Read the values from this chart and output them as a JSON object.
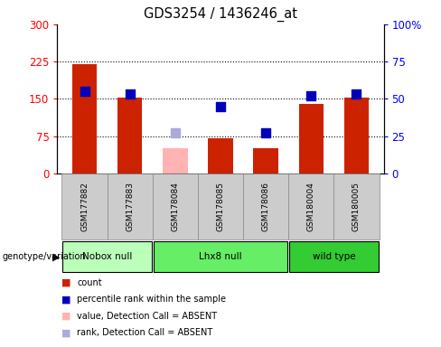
{
  "title": "GDS3254 / 1436246_at",
  "samples": [
    "GSM177882",
    "GSM177883",
    "GSM178084",
    "GSM178085",
    "GSM178086",
    "GSM180004",
    "GSM180005"
  ],
  "count_values": [
    220,
    152,
    50,
    70,
    50,
    140,
    152
  ],
  "percentile_values": [
    55,
    53,
    27,
    45,
    27,
    52,
    53
  ],
  "absent_mask": [
    false,
    false,
    true,
    false,
    false,
    false,
    false
  ],
  "bar_color_normal": "#cc2200",
  "bar_color_absent": "#ffb3b3",
  "dot_color_normal": "#0000bb",
  "dot_color_absent": "#aaaadd",
  "left_ylim": [
    0,
    300
  ],
  "right_ylim": [
    0,
    100
  ],
  "left_yticks": [
    0,
    75,
    150,
    225,
    300
  ],
  "right_yticks": [
    0,
    25,
    50,
    75,
    100
  ],
  "right_yticklabels": [
    "0",
    "25",
    "50",
    "75",
    "100%"
  ],
  "groups": [
    {
      "label": "Nobox null",
      "indices": [
        0,
        1
      ],
      "color": "#bbffbb"
    },
    {
      "label": "Lhx8 null",
      "indices": [
        2,
        3,
        4
      ],
      "color": "#66ee66"
    },
    {
      "label": "wild type",
      "indices": [
        5,
        6
      ],
      "color": "#33cc33"
    }
  ],
  "legend_items": [
    {
      "label": "count",
      "color": "#cc2200"
    },
    {
      "label": "percentile rank within the sample",
      "color": "#0000bb"
    },
    {
      "label": "value, Detection Call = ABSENT",
      "color": "#ffb3b3"
    },
    {
      "label": "rank, Detection Call = ABSENT",
      "color": "#aaaadd"
    }
  ],
  "background_color": "#ffffff",
  "plot_bg_color": "#ffffff",
  "xtick_bg_color": "#cccccc",
  "bar_width": 0.55,
  "dot_size": 55,
  "n_samples": 7
}
